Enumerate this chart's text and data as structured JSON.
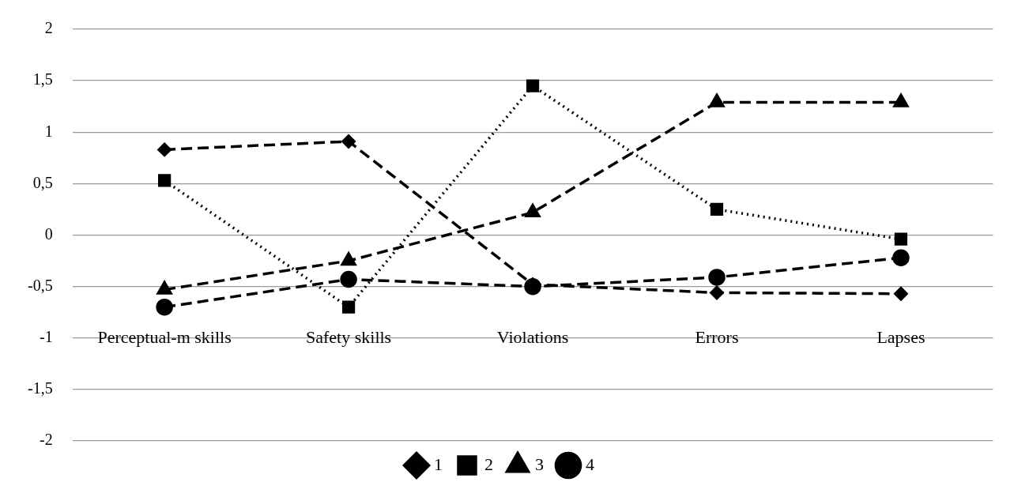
{
  "chart_data": {
    "type": "line",
    "categories": [
      "Perceptual-m skills",
      "Safety skills",
      "Violations",
      "Errors",
      "Lapses"
    ],
    "series": [
      {
        "name": "1",
        "color": "#000000",
        "marker": "diamond",
        "line_style": "dashed",
        "values": [
          0.83,
          0.91,
          -0.48,
          -0.56,
          -0.57
        ]
      },
      {
        "name": "2",
        "color": "#000000",
        "marker": "square",
        "line_style": "dotted",
        "values": [
          0.53,
          -0.7,
          1.45,
          0.25,
          -0.04
        ]
      },
      {
        "name": "3",
        "color": "#000000",
        "marker": "triangle",
        "line_style": "dashed",
        "values": [
          -0.53,
          -0.25,
          0.22,
          1.29,
          1.29
        ]
      },
      {
        "name": "4",
        "color": "#000000",
        "marker": "circle",
        "line_style": "dashed",
        "values": [
          -0.7,
          -0.43,
          -0.5,
          -0.41,
          -0.22
        ]
      }
    ],
    "ylim": [
      -2,
      2
    ],
    "yticks": [
      {
        "value": -2,
        "label": "-2"
      },
      {
        "value": -1.5,
        "label": "-1,5"
      },
      {
        "value": -1,
        "label": "-1"
      },
      {
        "value": -0.5,
        "label": "-0,5"
      },
      {
        "value": 0,
        "label": "0"
      },
      {
        "value": 0.5,
        "label": "0,5"
      },
      {
        "value": 1,
        "label": "1"
      },
      {
        "value": 1.5,
        "label": "1,5"
      },
      {
        "value": 2,
        "label": "2"
      }
    ],
    "grid": "y",
    "legend": "bottom"
  }
}
